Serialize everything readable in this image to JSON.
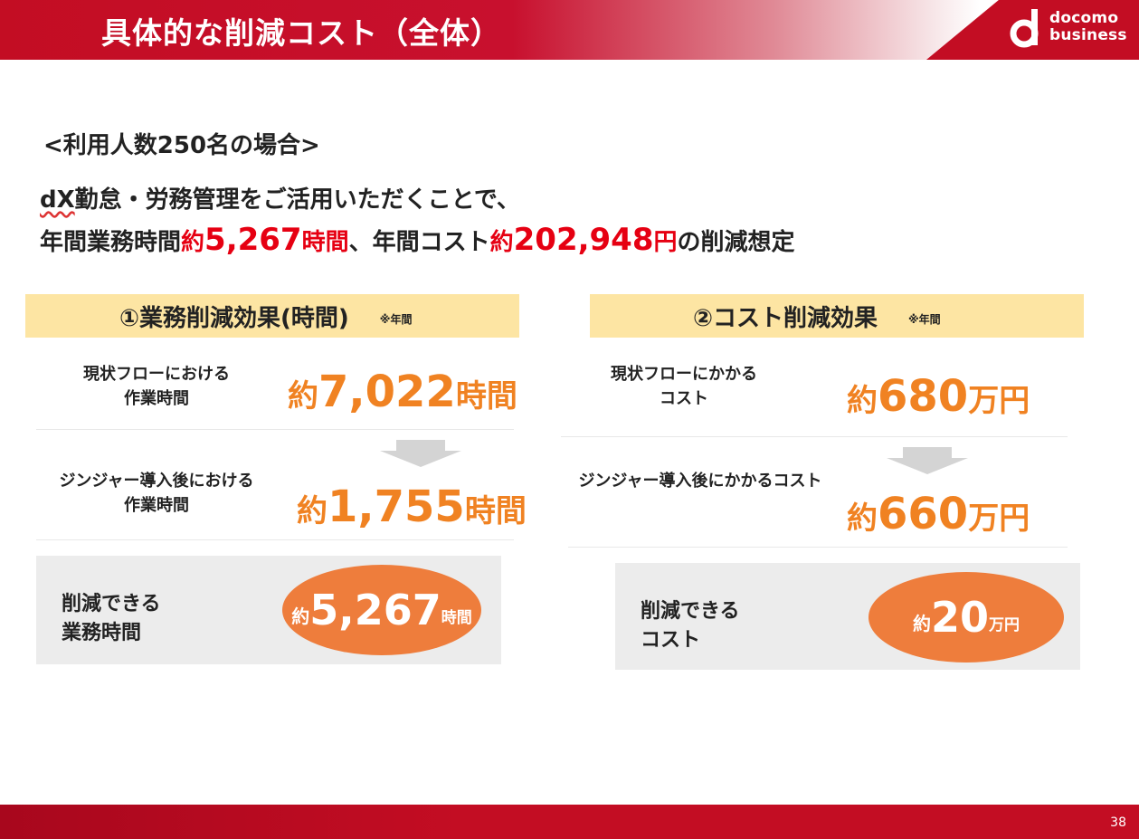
{
  "header": {
    "title": "具体的な削減コスト（全体）",
    "logo": {
      "line1": "docomo",
      "line2": "business"
    }
  },
  "subtitle": "<利用人数250名の場合>",
  "lead": {
    "line1_prefix": "dX",
    "line1_rest": "勤怠・労務管理をご活用いただくことで、",
    "line2": {
      "p1": "年間業務時間",
      "p2": "約",
      "p3": "5,267",
      "p4": "時間",
      "p5": "、年間コスト",
      "p6": "約",
      "p7": "202,948",
      "p8": "円",
      "p9": "の削減想定"
    }
  },
  "panel_time": {
    "title": "①業務削減効果(時間)",
    "note": "※年間",
    "current_label": [
      "現状フローにおける",
      "作業時間"
    ],
    "current_value": {
      "pre": "約",
      "num": "7,022",
      "unit": "時間"
    },
    "after_label": [
      "ジンジャー導入後における",
      "作業時間"
    ],
    "after_value": {
      "pre": "約",
      "num": "1,755",
      "unit": "時間"
    },
    "summary_label": [
      "削減できる",
      "業務時間"
    ],
    "summary_value": {
      "pre": "約",
      "num": "5,267",
      "unit": "時間"
    }
  },
  "panel_cost": {
    "title": "②コスト削減効果",
    "note": "※年間",
    "current_label": [
      "現状フローにかかる",
      "コスト"
    ],
    "current_value": {
      "pre": "約",
      "num": "680",
      "unit": "万円"
    },
    "after_label": [
      "ジンジャー導入後にかかるコスト"
    ],
    "after_value": {
      "pre": "約",
      "num": "660",
      "unit": "万円"
    },
    "summary_label": [
      "削減できる",
      "コスト"
    ],
    "summary_value": {
      "pre": "約",
      "num": "20",
      "unit": "万円"
    }
  },
  "footer": {
    "page_number": "38"
  },
  "colors": {
    "brand_red": "#c30d23",
    "highlight_red": "#e60012",
    "accent_orange": "#f08222",
    "header_yellow": "#fde5a3"
  }
}
